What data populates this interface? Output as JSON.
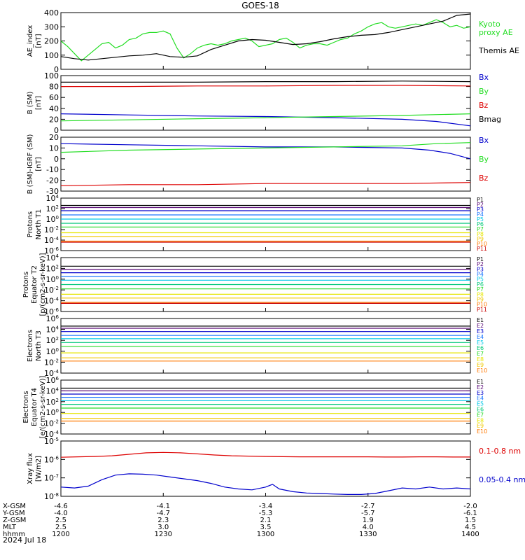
{
  "title": "GOES-18",
  "date": "2024 Jul 18",
  "time_axis": {
    "ticks": [
      "1200",
      "1230",
      "1300",
      "1330",
      "1400"
    ],
    "rows": [
      {
        "label": "X-GSM",
        "values": [
          "-4.6",
          "-4.1",
          "-3.4",
          "-2.7",
          "-2.0"
        ]
      },
      {
        "label": "Y-GSM",
        "values": [
          "-4.0",
          "-4.7",
          "-5.3",
          "-5.7",
          "-6.1"
        ]
      },
      {
        "label": "Z-GSM",
        "values": [
          "2.5",
          "2.3",
          "2.1",
          "1.9",
          "1.5"
        ]
      },
      {
        "label": "MLT",
        "values": [
          "2.5",
          "3.0",
          "3.5",
          "4.0",
          "4.5"
        ]
      },
      {
        "label": "hhmm",
        "values": [
          "1200",
          "1230",
          "1300",
          "1330",
          "1400"
        ]
      }
    ]
  },
  "colors": {
    "black": "#000000",
    "red": "#dd0000",
    "green": "#22dd22",
    "blue": "#0000cc",
    "p_channels": [
      "#000000",
      "#5a0a78",
      "#0000cc",
      "#1e78ff",
      "#00c8e6",
      "#00c878",
      "#28dc28",
      "#e6e600",
      "#f0c800",
      "#ff7800",
      "#c80000"
    ]
  },
  "chart_data": [
    {
      "type": "line",
      "ylabel": "AE_index\n[nT]",
      "ylim": [
        0,
        400
      ],
      "yticks": [
        "0",
        "100",
        "200",
        "300",
        "400"
      ],
      "legend": [
        "Kyoto\nproxy AE",
        "Themis AE"
      ],
      "series": [
        {
          "name": "Kyoto proxy AE",
          "color": "#22dd22",
          "x": [
            0,
            2,
            4,
            6,
            8,
            10,
            12,
            14,
            16,
            18,
            20,
            22,
            24,
            26,
            28,
            30,
            32,
            34,
            36,
            38,
            40,
            42,
            44,
            46,
            48,
            50,
            52,
            54,
            56,
            58,
            60,
            62,
            64,
            66,
            68,
            70,
            72,
            74,
            76,
            78,
            80,
            82,
            84,
            86,
            88,
            90,
            92,
            94,
            96,
            98,
            100,
            102,
            104,
            106,
            108,
            110,
            112,
            114,
            116,
            118,
            120
          ],
          "y": [
            200,
            160,
            110,
            60,
            100,
            140,
            180,
            190,
            150,
            170,
            210,
            220,
            250,
            260,
            260,
            270,
            250,
            150,
            80,
            110,
            150,
            170,
            180,
            170,
            180,
            200,
            210,
            220,
            200,
            160,
            170,
            180,
            210,
            220,
            190,
            150,
            170,
            180,
            180,
            170,
            190,
            210,
            220,
            250,
            270,
            300,
            320,
            330,
            300,
            290,
            300,
            310,
            320,
            310,
            330,
            350,
            330,
            300,
            310,
            290,
            300
          ]
        },
        {
          "name": "Themis AE",
          "color": "#000000",
          "x": [
            0,
            4,
            8,
            12,
            16,
            20,
            24,
            28,
            32,
            36,
            40,
            44,
            48,
            52,
            56,
            60,
            64,
            68,
            72,
            76,
            80,
            84,
            88,
            92,
            96,
            100,
            104,
            108,
            112,
            116,
            120
          ],
          "y": [
            90,
            75,
            65,
            75,
            85,
            95,
            100,
            110,
            90,
            85,
            95,
            140,
            170,
            200,
            210,
            205,
            190,
            175,
            180,
            195,
            215,
            230,
            240,
            245,
            260,
            280,
            300,
            320,
            340,
            380,
            390
          ]
        }
      ]
    },
    {
      "type": "line",
      "ylabel": "B (SM)\n[nT]",
      "ylim": [
        0,
        100
      ],
      "yticks": [
        "0",
        "20",
        "40",
        "60",
        "80",
        "100"
      ],
      "legend": [
        "Bx",
        "By",
        "Bz",
        "Bmag"
      ],
      "series": [
        {
          "name": "Bx",
          "color": "#0000cc",
          "x": [
            0,
            20,
            40,
            60,
            80,
            100,
            110,
            120
          ],
          "y": [
            30,
            28,
            26,
            25,
            23,
            20,
            16,
            8
          ]
        },
        {
          "name": "By",
          "color": "#22dd22",
          "x": [
            0,
            20,
            40,
            60,
            80,
            100,
            120
          ],
          "y": [
            17,
            19,
            21,
            23,
            25,
            27,
            30
          ]
        },
        {
          "name": "Bz",
          "color": "#dd0000",
          "x": [
            0,
            20,
            40,
            60,
            80,
            100,
            120
          ],
          "y": [
            80,
            80,
            81,
            81,
            82,
            82,
            81
          ]
        },
        {
          "name": "Bmag",
          "color": "#000000",
          "x": [
            0,
            20,
            40,
            60,
            80,
            100,
            120
          ],
          "y": [
            88,
            88,
            88,
            89,
            89,
            90,
            89
          ]
        }
      ]
    },
    {
      "type": "line",
      "ylabel": "B (SM)-IGRF (SM)\n[nT]",
      "ylim": [
        -30,
        20
      ],
      "yticks": [
        "-30",
        "-20",
        "-10",
        "0",
        "10",
        "20"
      ],
      "legend": [
        "Bx",
        "By",
        "Bz"
      ],
      "series": [
        {
          "name": "Bx",
          "color": "#0000cc",
          "x": [
            0,
            20,
            40,
            60,
            80,
            100,
            108,
            114,
            120
          ],
          "y": [
            14,
            13,
            12,
            11,
            11,
            10,
            8,
            5,
            0
          ]
        },
        {
          "name": "By",
          "color": "#22dd22",
          "x": [
            0,
            20,
            40,
            60,
            80,
            100,
            110,
            120
          ],
          "y": [
            6,
            8,
            9,
            10,
            11,
            12,
            14,
            15
          ]
        },
        {
          "name": "Bz",
          "color": "#dd0000",
          "x": [
            0,
            20,
            40,
            60,
            80,
            100,
            120
          ],
          "y": [
            -25,
            -24,
            -24,
            -23,
            -23,
            -23,
            -22
          ]
        }
      ]
    },
    {
      "type": "line",
      "ylabel": "Protons\nNorth T1",
      "log": true,
      "ylim": [
        -6,
        4
      ],
      "yticks": [
        "10^-6",
        "10^-4",
        "10^-2",
        "10^0",
        "10^2",
        "10^4"
      ],
      "legend": [
        "P1",
        "P2",
        "P3",
        "P4",
        "P5",
        "P6",
        "P7",
        "P8",
        "P9",
        "P10",
        "P11"
      ],
      "series": [
        {
          "name": "P1",
          "y": [
            2.6,
            2.6
          ]
        },
        {
          "name": "P2",
          "y": [
            2.2,
            2.2
          ]
        },
        {
          "name": "P3",
          "y": [
            1.6,
            1.6
          ]
        },
        {
          "name": "P4",
          "y": [
            0.8,
            0.8
          ]
        },
        {
          "name": "P5",
          "y": [
            0,
            0
          ]
        },
        {
          "name": "P6",
          "y": [
            -0.8,
            -0.8
          ]
        },
        {
          "name": "P7",
          "y": [
            -1.5,
            -1.5
          ]
        },
        {
          "name": "P8",
          "y": [
            -2.6,
            -2.6
          ]
        },
        {
          "name": "P9",
          "y": [
            -3.3,
            -3.3
          ]
        },
        {
          "name": "P10",
          "y": [
            -4.2,
            -4.2
          ]
        },
        {
          "name": "P11",
          "y": [
            -4.4,
            -4.4
          ]
        }
      ]
    },
    {
      "type": "line",
      "ylabel": "Protons\nEquator T2\n[p/(cm2-s-sr-keV)]",
      "log": true,
      "ylim": [
        -6,
        4
      ],
      "yticks": [
        "10^-6",
        "10^-4",
        "10^-2",
        "10^0",
        "10^2",
        "10^4"
      ],
      "legend": [
        "P1",
        "P2",
        "P3",
        "P4",
        "P5",
        "P6",
        "P7",
        "P8",
        "P9",
        "P10",
        "P11"
      ],
      "series": [
        {
          "name": "P1",
          "y": [
            2.4,
            2.4
          ]
        },
        {
          "name": "P2",
          "y": [
            1.8,
            1.8
          ]
        },
        {
          "name": "P3",
          "y": [
            1.2,
            1.2
          ]
        },
        {
          "name": "P4",
          "y": [
            0.5,
            0.5
          ]
        },
        {
          "name": "P5",
          "y": [
            -0.2,
            -0.2
          ]
        },
        {
          "name": "P6",
          "y": [
            -1.0,
            -1.0
          ]
        },
        {
          "name": "P7",
          "y": [
            -1.8,
            -1.8
          ]
        },
        {
          "name": "P8",
          "y": [
            -2.8,
            -2.8
          ]
        },
        {
          "name": "P9",
          "y": [
            -3.5,
            -3.5
          ]
        },
        {
          "name": "P10",
          "y": [
            -4.3,
            -4.3
          ]
        },
        {
          "name": "P11",
          "y": [
            -4.5,
            -4.5
          ]
        }
      ]
    },
    {
      "type": "line",
      "ylabel": "Electrons\nNorth T3",
      "log": true,
      "ylim": [
        -4,
        6
      ],
      "yticks": [
        "10^-4",
        "10^-2",
        "10^0",
        "10^2",
        "10^4",
        "10^6"
      ],
      "legend": [
        "E1",
        "E2",
        "E3",
        "E4",
        "E5",
        "E6",
        "E7",
        "E8",
        "E9",
        "E10"
      ],
      "series": [
        {
          "name": "E1",
          "y": [
            4.6,
            4.6
          ]
        },
        {
          "name": "E2",
          "y": [
            4.2,
            4.2
          ]
        },
        {
          "name": "E3",
          "y": [
            3.6,
            3.6
          ]
        },
        {
          "name": "E4",
          "y": [
            2.9,
            2.9
          ]
        },
        {
          "name": "E5",
          "y": [
            2.3,
            2.3
          ]
        },
        {
          "name": "E6",
          "y": [
            1.6,
            1.6
          ]
        },
        {
          "name": "E7",
          "y": [
            0.9,
            0.9
          ]
        },
        {
          "name": "E8",
          "y": [
            -0.3,
            -0.3
          ]
        },
        {
          "name": "E9",
          "y": [
            -1.2,
            -1.2
          ]
        },
        {
          "name": "E10",
          "y": [
            -1.8,
            -1.8
          ]
        }
      ]
    },
    {
      "type": "line",
      "ylabel": "Electrons\nEquator T4\n[e/(cm2-s-sr-keV)]",
      "log": true,
      "ylim": [
        -4,
        6
      ],
      "yticks": [
        "10^-4",
        "10^-2",
        "10^0",
        "10^2",
        "10^4",
        "10^6"
      ],
      "legend": [
        "E1",
        "E2",
        "E3",
        "E4",
        "E5",
        "E6",
        "E7",
        "E8",
        "E9",
        "E10"
      ],
      "series": [
        {
          "name": "E1",
          "y": [
            4.5,
            4.5
          ]
        },
        {
          "name": "E2",
          "y": [
            4.0,
            4.0
          ]
        },
        {
          "name": "E3",
          "y": [
            3.4,
            3.4
          ]
        },
        {
          "name": "E4",
          "y": [
            2.8,
            2.8
          ]
        },
        {
          "name": "E5",
          "y": [
            2.2,
            2.2
          ]
        },
        {
          "name": "E6",
          "y": [
            1.5,
            1.5
          ]
        },
        {
          "name": "E7",
          "y": [
            0.8,
            0.8
          ]
        },
        {
          "name": "E8",
          "y": [
            -0.2,
            -0.2
          ]
        },
        {
          "name": "E9",
          "y": [
            -1.1,
            -1.1
          ]
        },
        {
          "name": "E10",
          "y": [
            -1.6,
            -1.6
          ]
        }
      ]
    },
    {
      "type": "line",
      "ylabel": "Xray flux\n[W/m2]",
      "log": true,
      "ylim": [
        -8,
        -5
      ],
      "yticks": [
        "10^-8",
        "10^-7",
        "10^-6",
        "10^-5"
      ],
      "legend": [
        "0.1-0.8 nm",
        "0.05-0.4 nm"
      ],
      "series": [
        {
          "name": "0.1-0.8 nm",
          "color": "#dd0000",
          "x": [
            0,
            5,
            10,
            15,
            20,
            25,
            30,
            35,
            40,
            45,
            50,
            55,
            60,
            65,
            70,
            75,
            80,
            85,
            90,
            95,
            100,
            105,
            110,
            115,
            120
          ],
          "y": [
            -5.88,
            -5.86,
            -5.84,
            -5.8,
            -5.72,
            -5.64,
            -5.62,
            -5.64,
            -5.7,
            -5.76,
            -5.8,
            -5.82,
            -5.84,
            -5.85,
            -5.86,
            -5.86,
            -5.86,
            -5.86,
            -5.86,
            -5.87,
            -5.87,
            -5.86,
            -5.86,
            -5.87,
            -5.87
          ]
        },
        {
          "name": "0.05-0.4 nm",
          "color": "#0000cc",
          "x": [
            0,
            4,
            8,
            12,
            16,
            20,
            24,
            28,
            32,
            36,
            40,
            44,
            48,
            52,
            56,
            60,
            62,
            64,
            68,
            72,
            76,
            80,
            84,
            88,
            92,
            96,
            100,
            104,
            108,
            112,
            116,
            120
          ],
          "y": [
            -7.5,
            -7.55,
            -7.45,
            -7.1,
            -6.85,
            -6.78,
            -6.8,
            -6.85,
            -6.95,
            -7.05,
            -7.15,
            -7.3,
            -7.5,
            -7.6,
            -7.65,
            -7.5,
            -7.35,
            -7.6,
            -7.75,
            -7.82,
            -7.85,
            -7.88,
            -7.9,
            -7.9,
            -7.85,
            -7.7,
            -7.55,
            -7.6,
            -7.5,
            -7.6,
            -7.55,
            -7.6
          ]
        }
      ]
    }
  ]
}
